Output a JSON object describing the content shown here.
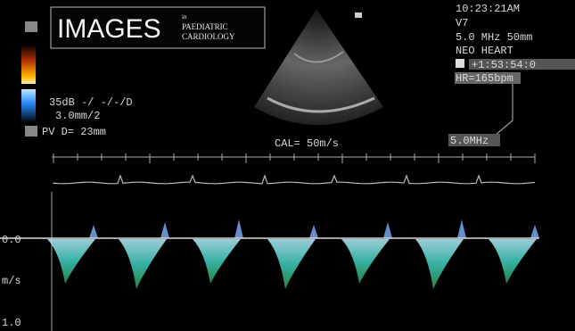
{
  "logo": {
    "title": "IMAGES",
    "prefix": "in",
    "line1": "PAEDIATRIC",
    "line2": "CARDIOLOGY"
  },
  "info": {
    "time": "10:23:21AM",
    "probe": "V7",
    "freq": "5.0 MHz  50mm",
    "preset": "NEO HEART",
    "clock": "+1:53:54:0",
    "hr": "HR=165bpm"
  },
  "settings": {
    "gain": "35dB -/ -/-/D",
    "rate": "3.0mm/2",
    "pv": "PV D= 23mm"
  },
  "cal": "CAL= 50m/s",
  "freq_box": "5.0MHz",
  "scale": {
    "zero": "0.0",
    "unit": "m/s",
    "max": "1.0"
  }
}
